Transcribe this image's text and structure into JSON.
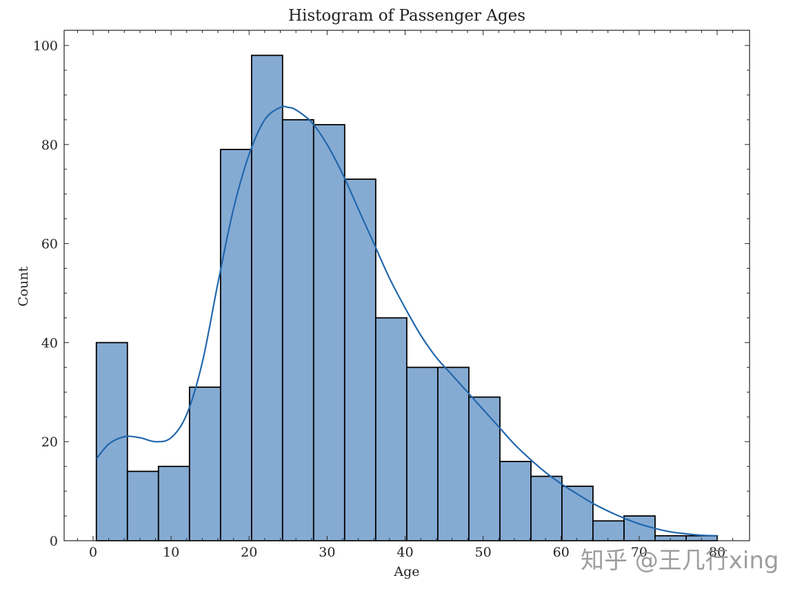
{
  "chart_data": {
    "type": "bar",
    "subtype": "histogram_with_kde",
    "title": "Histogram of Passenger Ages",
    "xlabel": "Age",
    "ylabel": "Count",
    "xlim": [
      -3.5,
      83.5
    ],
    "ylim": [
      0,
      103
    ],
    "xticks": [
      0,
      10,
      20,
      30,
      40,
      50,
      60,
      70,
      80
    ],
    "yticks": [
      0,
      20,
      40,
      60,
      80,
      100
    ],
    "grid": false,
    "legend": null,
    "bin_start": 0.42,
    "bin_width": 3.979,
    "bin_edges": [
      0.42,
      4.4,
      8.38,
      12.36,
      16.34,
      20.32,
      24.29,
      28.27,
      32.25,
      36.23,
      40.21,
      44.19,
      48.17,
      52.15,
      56.13,
      60.1,
      64.08,
      68.06,
      72.04,
      76.02,
      80.0
    ],
    "categories": [
      "0.4-4.4",
      "4.4-8.4",
      "8.4-12.4",
      "12.4-16.3",
      "16.3-20.3",
      "20.3-24.3",
      "24.3-28.3",
      "28.3-32.3",
      "32.3-36.2",
      "36.2-40.2",
      "40.2-44.2",
      "44.2-48.2",
      "48.2-52.1",
      "52.1-56.1",
      "56.1-60.1",
      "60.1-64.1",
      "64.1-68.1",
      "68.1-72.0",
      "72.0-76.0",
      "76.0-80.0"
    ],
    "values": [
      40,
      14,
      15,
      31,
      79,
      98,
      85,
      84,
      73,
      45,
      35,
      35,
      29,
      16,
      13,
      11,
      4,
      5,
      1,
      1
    ],
    "kde": {
      "x": [
        0.42,
        2,
        4,
        6,
        8,
        10,
        12,
        14,
        16,
        18,
        20,
        22,
        24,
        25,
        26,
        28,
        30,
        32,
        34,
        36,
        38,
        40,
        42,
        44,
        46,
        48,
        50,
        52,
        54,
        56,
        58,
        60,
        62,
        64,
        66,
        68,
        70,
        72,
        74,
        76,
        78,
        80
      ],
      "y": [
        16.5,
        19.5,
        21.0,
        20.8,
        20.0,
        20.8,
        25.5,
        36.0,
        52.0,
        67.0,
        78.0,
        85.0,
        87.5,
        87.5,
        87.0,
        84.5,
        80.0,
        74.0,
        67.0,
        60.0,
        53.0,
        47.0,
        41.5,
        37.0,
        33.5,
        30.0,
        26.5,
        23.0,
        19.5,
        16.5,
        13.8,
        11.5,
        9.5,
        7.6,
        6.0,
        4.6,
        3.4,
        2.5,
        1.8,
        1.4,
        1.1,
        1.0
      ]
    },
    "colors": {
      "bar_fill": "#85abd3",
      "bar_edge": "#000000",
      "kde_line": "#2166ac"
    }
  },
  "watermark": "知乎 @王几行xing"
}
